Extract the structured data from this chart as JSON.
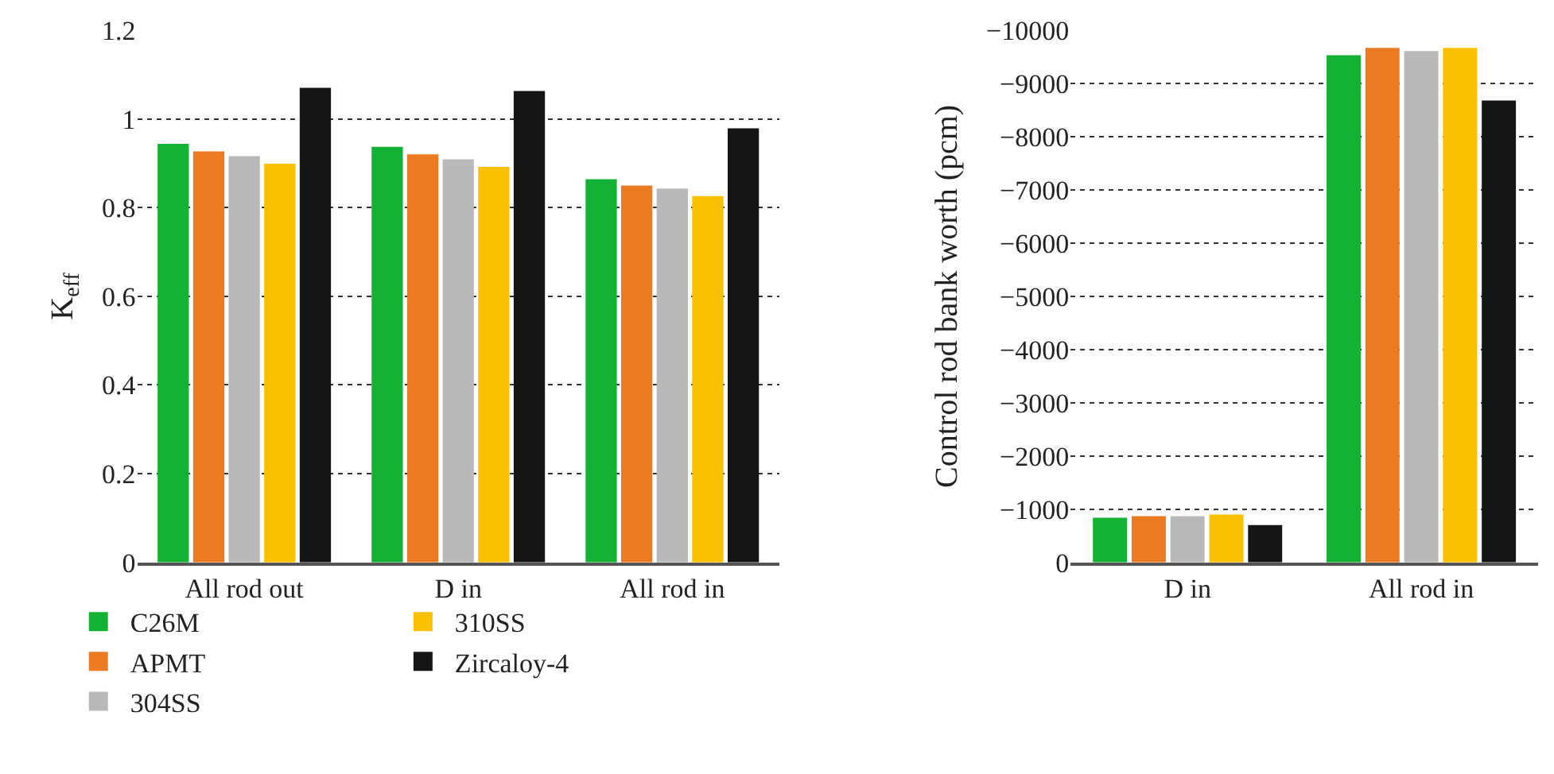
{
  "chart_data": [
    {
      "type": "bar",
      "ylabel": "K$_{eff}$",
      "categories": [
        "All rod out",
        "D in",
        "All rod in"
      ],
      "series": [
        {
          "name": "C26M",
          "color": "#13b235",
          "values": [
            0.944,
            0.937,
            0.864
          ]
        },
        {
          "name": "APMT",
          "color": "#ec7a23",
          "values": [
            0.927,
            0.92,
            0.85
          ]
        },
        {
          "name": "304SS",
          "color": "#b9b9b9",
          "values": [
            0.916,
            0.909,
            0.843
          ]
        },
        {
          "name": "310SS",
          "color": "#fac103",
          "values": [
            0.899,
            0.892,
            0.826
          ]
        },
        {
          "name": "Zircaloy-4",
          "color": "#151515",
          "values": [
            1.07,
            1.063,
            0.979
          ]
        }
      ],
      "ylim": [
        0,
        1.2
      ],
      "yticks": [
        0,
        0.2,
        0.4,
        0.6,
        0.8,
        1,
        1.2
      ],
      "grid": "y",
      "legend": "bottom"
    },
    {
      "type": "bar",
      "ylabel": "Control rod bank worth (pcm)",
      "categories": [
        "D in",
        "All rod in"
      ],
      "series": [
        {
          "color": "#13b235",
          "values": [
            -840,
            -9530
          ]
        },
        {
          "color": "#ec7a23",
          "values": [
            -870,
            -9670
          ]
        },
        {
          "color": "#b9b9b9",
          "values": [
            -870,
            -9610
          ]
        },
        {
          "color": "#fac103",
          "values": [
            -900,
            -9670
          ]
        },
        {
          "color": "#151515",
          "values": [
            -700,
            -8680
          ]
        }
      ],
      "ylim": [
        0,
        -10000
      ],
      "yticks": [
        0,
        {
          "value": -1000,
          "label": "−1000"
        },
        {
          "value": -2000,
          "label": "−2000"
        },
        {
          "value": -3000,
          "label": "−3000"
        },
        {
          "value": -4000,
          "label": "−4000"
        },
        {
          "value": -5000,
          "label": "−5000"
        },
        {
          "value": -6000,
          "label": "−6000"
        },
        {
          "value": -7000,
          "label": "−7000"
        },
        {
          "value": -8000,
          "label": "−8000"
        },
        {
          "value": -9000,
          "label": "−9000"
        },
        {
          "value": -10000,
          "label": "−10000"
        }
      ],
      "grid": "y",
      "legend": false
    }
  ]
}
